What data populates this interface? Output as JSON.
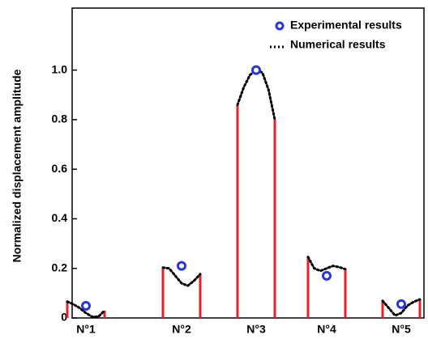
{
  "chart_data": {
    "type": "mode-profile",
    "ylabel": "Normalized displacement amplitude",
    "categories": [
      "N°1",
      "N°2",
      "N°3",
      "N°4",
      "N°5"
    ],
    "ylim": [
      0,
      1.25
    ],
    "yticks": [
      0,
      0.2,
      0.4,
      0.6,
      0.8,
      {
        "value": 1,
        "label": "1.0"
      }
    ],
    "series": [
      {
        "name": "Experimental results",
        "color": "#2a35d6",
        "marker": "circle",
        "values": [
          0.049,
          0.21,
          1.0,
          0.17,
          0.056
        ]
      },
      {
        "name": "Numerical results",
        "color": "#000000",
        "edge_color": "#e8202a",
        "line": "dotted",
        "values": [
          [
            0.066,
            0.055,
            0.04,
            0.02,
            0.005,
            0.005,
            0.03
          ],
          [
            0.203,
            0.2,
            0.17,
            0.14,
            0.13,
            0.15,
            0.177
          ],
          [
            0.86,
            0.93,
            0.98,
            1.0,
            0.99,
            0.92,
            0.8
          ],
          [
            0.246,
            0.2,
            0.19,
            0.2,
            0.21,
            0.205,
            0.197
          ],
          [
            0.069,
            0.04,
            0.01,
            0.02,
            0.05,
            0.065,
            0.075
          ]
        ]
      }
    ],
    "legend": "upper right"
  }
}
